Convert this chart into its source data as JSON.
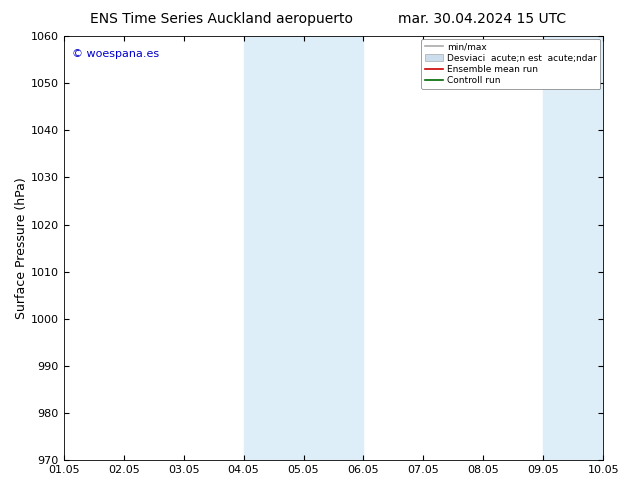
{
  "title_left": "ENS Time Series Auckland aeropuerto",
  "title_right": "mar. 30.04.2024 15 UTC",
  "ylabel": "Surface Pressure (hPa)",
  "ylim": [
    970,
    1060
  ],
  "yticks": [
    970,
    980,
    990,
    1000,
    1010,
    1020,
    1030,
    1040,
    1050,
    1060
  ],
  "xlim_dates": [
    "01.05",
    "02.05",
    "03.05",
    "04.05",
    "05.05",
    "06.05",
    "07.05",
    "08.05",
    "09.05",
    "10.05"
  ],
  "shaded_regions": [
    {
      "xmin": 3,
      "xmax": 5,
      "color": "#ddeef8"
    },
    {
      "xmin": 8,
      "xmax": 9,
      "color": "#ddeef8"
    }
  ],
  "watermark": "© woespana.es",
  "watermark_color": "#0000cc",
  "legend_label_minmax": "min/max",
  "legend_label_std": "Desviaci  acute;n est  acute;ndar",
  "legend_label_ensemble": "Ensemble mean run",
  "legend_label_control": "Controll run",
  "legend_color_minmax": "#aaaaaa",
  "legend_color_std": "#ccdded",
  "legend_color_ensemble": "#cc0000",
  "legend_color_control": "#006600",
  "background_color": "#ffffff",
  "plot_bg_color": "#ffffff",
  "tick_fontsize": 8,
  "title_fontsize": 10,
  "ylabel_fontsize": 9
}
